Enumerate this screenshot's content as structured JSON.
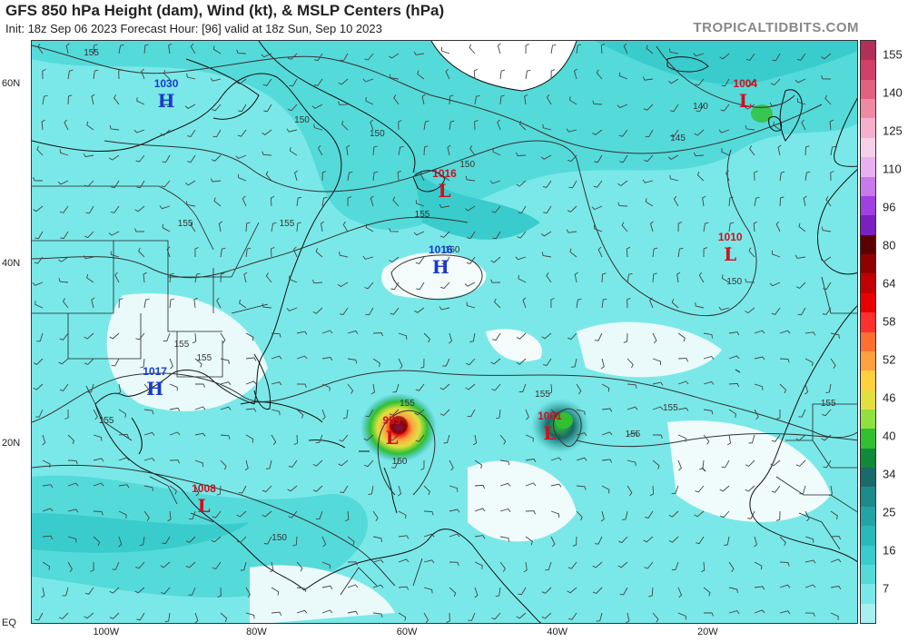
{
  "header": {
    "title": "GFS 850 hPa Height (dam), Wind (kt), & MSLP Centers (hPa)",
    "subtitle": "Init: 18z Sep 06 2023   Forecast Hour: [96]   valid at 18z Sun, Sep 10 2023",
    "brand": "TROPICALTIDBITS.COM"
  },
  "axes": {
    "lat_labels": [
      {
        "text": "60N",
        "lat": 60
      },
      {
        "text": "40N",
        "lat": 40
      },
      {
        "text": "20N",
        "lat": 20
      },
      {
        "text": "EQ",
        "lat": 0
      }
    ],
    "lon_labels": [
      {
        "text": "100W",
        "lon": -100
      },
      {
        "text": "80W",
        "lon": -80
      },
      {
        "text": "60W",
        "lon": -60
      },
      {
        "text": "40W",
        "lon": -40
      },
      {
        "text": "20W",
        "lon": -20
      }
    ],
    "lon_range": [
      -110,
      0
    ],
    "lat_range": [
      0,
      65
    ]
  },
  "colorbar": {
    "labels": [
      "155",
      "140",
      "125",
      "110",
      "96",
      "80",
      "64",
      "58",
      "52",
      "46",
      "40",
      "34",
      "25",
      "16",
      "7"
    ],
    "colors": [
      "#b0305a",
      "#d0406a",
      "#e26080",
      "#ee8aa4",
      "#f4b0cc",
      "#f5d0e8",
      "#e8b0f0",
      "#c87ae8",
      "#a040e0",
      "#7a20c0",
      "#5a0000",
      "#900000",
      "#c00000",
      "#e80000",
      "#ff3030",
      "#ff7030",
      "#ffa040",
      "#ffd040",
      "#e0e040",
      "#90e040",
      "#30c030",
      "#108a3a",
      "#1a6a6a",
      "#1c8a8a",
      "#23a3a3",
      "#2ab8b8",
      "#3acccc",
      "#55dada",
      "#7ae8e8",
      "#a8f0f0"
    ]
  },
  "pressure_centers": [
    {
      "type": "H",
      "value": "1030",
      "lat": 59,
      "lon": -92,
      "color": "#1a3acc"
    },
    {
      "type": "L",
      "value": "1016",
      "lat": 49,
      "lon": -55,
      "color": "#d01020"
    },
    {
      "type": "H",
      "value": "1016",
      "lat": 40.5,
      "lon": -55.5,
      "color": "#1a3acc"
    },
    {
      "type": "L",
      "value": "1004",
      "lat": 59,
      "lon": -15,
      "color": "#d01020"
    },
    {
      "type": "L",
      "value": "1010",
      "lat": 42,
      "lon": -17,
      "color": "#d01020"
    },
    {
      "type": "H",
      "value": "1017",
      "lat": 27,
      "lon": -93.5,
      "color": "#1a3acc"
    },
    {
      "type": "L",
      "value": "959",
      "lat": 21.5,
      "lon": -62,
      "color": "#d01020"
    },
    {
      "type": "L",
      "value": "1001",
      "lat": 22,
      "lon": -41,
      "color": "#d01020"
    },
    {
      "type": "L",
      "value": "1008",
      "lat": 14,
      "lon": -87,
      "color": "#d01020"
    }
  ],
  "contour_labels": [
    {
      "text": "155",
      "lat": 63.5,
      "lon": -102
    },
    {
      "text": "150",
      "lat": 56,
      "lon": -74
    },
    {
      "text": "150",
      "lat": 54.5,
      "lon": -64
    },
    {
      "text": "150",
      "lat": 51,
      "lon": -52
    },
    {
      "text": "140",
      "lat": 57.5,
      "lon": -21
    },
    {
      "text": "145",
      "lat": 54,
      "lon": -24
    },
    {
      "text": "155",
      "lat": 45.5,
      "lon": -58
    },
    {
      "text": "155",
      "lat": 44.5,
      "lon": -89.5
    },
    {
      "text": "155",
      "lat": 44.5,
      "lon": -76
    },
    {
      "text": "160",
      "lat": 41.5,
      "lon": -54
    },
    {
      "text": "150",
      "lat": 38,
      "lon": -16.5
    },
    {
      "text": "155",
      "lat": 31,
      "lon": -90
    },
    {
      "text": "155",
      "lat": 29.5,
      "lon": -87
    },
    {
      "text": "155",
      "lat": 24.5,
      "lon": -60
    },
    {
      "text": "155",
      "lat": 25.5,
      "lon": -42
    },
    {
      "text": "155",
      "lat": 24,
      "lon": -25
    },
    {
      "text": "155",
      "lat": 24.5,
      "lon": -4
    },
    {
      "text": "155",
      "lat": 22.5,
      "lon": -100
    },
    {
      "text": "155",
      "lat": 21,
      "lon": -30
    },
    {
      "text": "150",
      "lat": 18,
      "lon": -61
    },
    {
      "text": "150",
      "lat": 9.5,
      "lon": -77
    }
  ]
}
